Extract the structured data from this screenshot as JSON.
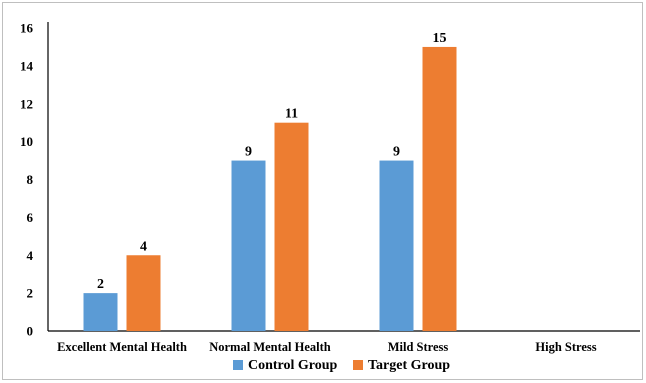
{
  "chart_data": {
    "type": "bar",
    "title": "",
    "xlabel": "",
    "ylabel": "",
    "categories": [
      "Excellent Mental Health",
      "Normal Mental Health",
      "Mild Stress",
      "High Stress"
    ],
    "series": [
      {
        "name": "Control Group",
        "color": "#5b9bd5",
        "values": [
          2,
          9,
          9,
          null
        ],
        "labels": [
          "2",
          "9",
          "9",
          ""
        ]
      },
      {
        "name": "Target Group",
        "color": "#ed7d31",
        "values": [
          4,
          11,
          15,
          null
        ],
        "labels": [
          "4",
          "11",
          "15",
          ""
        ]
      }
    ],
    "ylim": [
      0,
      16
    ],
    "yticks": [
      0,
      2,
      4,
      6,
      8,
      10,
      12,
      14,
      16
    ],
    "ytick_labels": [
      "0",
      "2",
      "4",
      "6",
      "8",
      "10",
      "12",
      "14",
      "16"
    ],
    "grid": false,
    "legend": "bottom"
  }
}
